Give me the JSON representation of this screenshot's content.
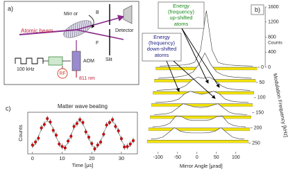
{
  "diagram": {
    "panel_label": "a)",
    "mirror": "Mirr or",
    "back": "B",
    "forward": "F",
    "beam": "Atomic beam",
    "detector": "Detector",
    "slit": "Slit",
    "modulation": "100 kHz",
    "rf": "RF",
    "aom": "AOM",
    "laser": "811 nm"
  },
  "chart_data": [
    {
      "type": "waterfall",
      "panel_label": "b)",
      "ylabel": "Counts",
      "xlabel": "Mirror Angle [μrad]",
      "zlabel": "Modulation Frequency [kHz]",
      "annotations": [
        {
          "lines": [
            "Energy",
            "(frequency)",
            "up-shifted",
            "atoms"
          ],
          "color": "#1a8a1a"
        },
        {
          "lines": [
            "Energy",
            "(frequency)",
            "down-shifted",
            "atoms"
          ],
          "color": "#1a1a80"
        }
      ],
      "x": [
        -120,
        -105,
        -90,
        -75,
        -60,
        -45,
        -30,
        -15,
        0,
        15,
        30,
        45,
        60,
        75,
        90,
        105,
        120
      ],
      "z": [
        0,
        40,
        80,
        120,
        160,
        200,
        240
      ],
      "series": [
        {
          "values": [
            30,
            35,
            40,
            50,
            60,
            80,
            130,
            450,
            1500,
            450,
            130,
            80,
            60,
            50,
            40,
            35,
            30
          ]
        },
        {
          "values": [
            30,
            40,
            50,
            60,
            80,
            120,
            200,
            400,
            700,
            400,
            200,
            120,
            80,
            60,
            50,
            40,
            30
          ]
        },
        {
          "values": [
            30,
            40,
            50,
            60,
            90,
            160,
            300,
            380,
            350,
            380,
            300,
            160,
            90,
            60,
            50,
            40,
            30
          ]
        },
        {
          "values": [
            30,
            40,
            50,
            70,
            120,
            260,
            330,
            280,
            250,
            280,
            330,
            260,
            120,
            70,
            50,
            40,
            30
          ]
        },
        {
          "values": [
            30,
            40,
            50,
            90,
            200,
            320,
            280,
            230,
            220,
            230,
            280,
            320,
            200,
            90,
            50,
            40,
            30
          ]
        },
        {
          "values": [
            30,
            40,
            60,
            130,
            310,
            300,
            220,
            200,
            200,
            200,
            220,
            300,
            310,
            130,
            60,
            40,
            30
          ]
        },
        {
          "values": [
            30,
            40,
            80,
            200,
            330,
            240,
            200,
            190,
            190,
            190,
            200,
            240,
            330,
            200,
            80,
            40,
            30
          ]
        }
      ],
      "xlim": [
        -130,
        130
      ],
      "xticks": [
        -100,
        -50,
        0,
        50,
        100
      ],
      "ylim": [
        0,
        1600
      ],
      "yticks": [
        0,
        400,
        800,
        1200,
        1600
      ],
      "zlim": [
        0,
        260
      ],
      "zticks": [
        0,
        50,
        100,
        150,
        200,
        250
      ],
      "trace_color": "#f2e200"
    },
    {
      "type": "scatter",
      "panel_label": "c)",
      "title": "Matter wave beating",
      "xlabel": "Time [μs]",
      "ylabel": "Counts",
      "color": "#d40000",
      "fit_color": "#888888",
      "x": [
        0,
        1,
        2,
        3,
        4,
        5,
        6,
        7,
        8,
        9,
        10,
        11,
        12,
        13,
        14,
        15,
        16,
        17,
        18,
        19,
        20,
        21,
        22,
        23,
        24,
        25,
        26,
        27,
        28,
        29,
        30,
        31,
        32,
        33,
        34
      ],
      "values": [
        0.28,
        0.34,
        0.42,
        0.63,
        0.7,
        0.82,
        0.75,
        0.58,
        0.48,
        0.3,
        0.25,
        0.22,
        0.36,
        0.46,
        0.66,
        0.72,
        0.8,
        0.74,
        0.55,
        0.44,
        0.31,
        0.2,
        0.28,
        0.34,
        0.5,
        0.69,
        0.74,
        0.8,
        0.66,
        0.57,
        0.41,
        0.24,
        0.25,
        0.3,
        0.37
      ],
      "errors": [
        0.06,
        0.06,
        0.06,
        0.06,
        0.06,
        0.06,
        0.06,
        0.06,
        0.06,
        0.06,
        0.06,
        0.06,
        0.06,
        0.06,
        0.06,
        0.06,
        0.06,
        0.06,
        0.06,
        0.06,
        0.06,
        0.06,
        0.06,
        0.06,
        0.06,
        0.06,
        0.06,
        0.06,
        0.06,
        0.06,
        0.06,
        0.06,
        0.06,
        0.06,
        0.06
      ],
      "fit": [
        0.23,
        0.31,
        0.45,
        0.61,
        0.73,
        0.78,
        0.73,
        0.61,
        0.45,
        0.31,
        0.23,
        0.24,
        0.33,
        0.48,
        0.64,
        0.75,
        0.78,
        0.72,
        0.58,
        0.42,
        0.28,
        0.22,
        0.25,
        0.36,
        0.52,
        0.67,
        0.76,
        0.77,
        0.69,
        0.55,
        0.39,
        0.26,
        0.22,
        0.27,
        0.39
      ],
      "xlim": [
        -1.6,
        35.4
      ],
      "xticks": [
        0,
        10,
        20,
        30
      ],
      "ylim": [
        0.1,
        0.95
      ]
    }
  ]
}
